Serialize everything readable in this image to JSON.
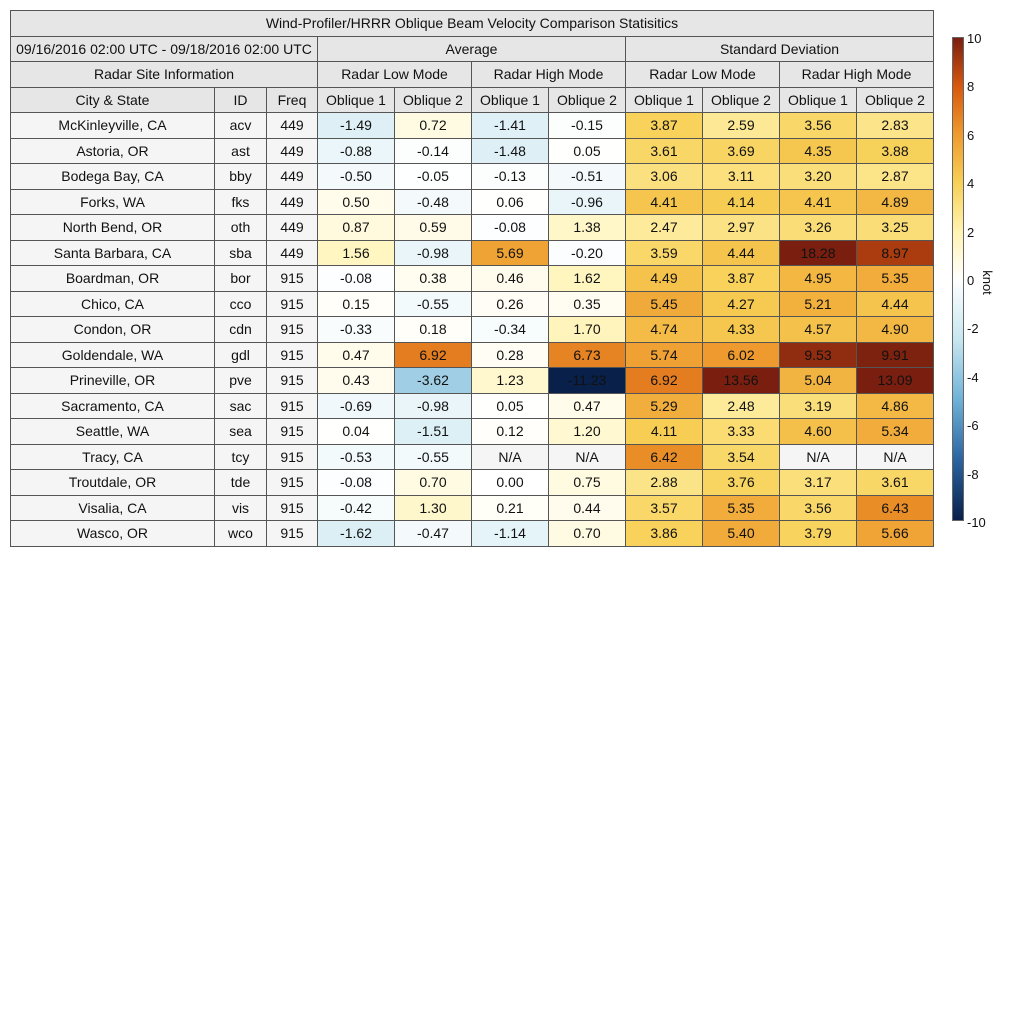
{
  "chart_data": {
    "type": "heatmap",
    "title": "Wind-Profiler/HRRR Oblique Beam Velocity Comparison Statisitics",
    "date_range": "09/16/2016 02:00 UTC - 09/18/2016 02:00 UTC",
    "site_header": "Radar Site Information",
    "columns": {
      "city": "City & State",
      "id": "ID",
      "freq": "Freq"
    },
    "groups": [
      {
        "label": "Average",
        "modes": [
          {
            "label": "Radar Low Mode",
            "beams": [
              "Oblique 1",
              "Oblique 2"
            ]
          },
          {
            "label": "Radar High Mode",
            "beams": [
              "Oblique 1",
              "Oblique 2"
            ]
          }
        ]
      },
      {
        "label": "Standard Deviation",
        "modes": [
          {
            "label": "Radar Low Mode",
            "beams": [
              "Oblique 1",
              "Oblique 2"
            ]
          },
          {
            "label": "Radar High Mode",
            "beams": [
              "Oblique 1",
              "Oblique 2"
            ]
          }
        ]
      }
    ],
    "rows": [
      {
        "city": "McKinleyville, CA",
        "id": "acv",
        "freq": "449",
        "values": [
          "-1.49",
          "0.72",
          "-1.41",
          "-0.15",
          "3.87",
          "2.59",
          "3.56",
          "2.83"
        ]
      },
      {
        "city": "Astoria, OR",
        "id": "ast",
        "freq": "449",
        "values": [
          "-0.88",
          "-0.14",
          "-1.48",
          "0.05",
          "3.61",
          "3.69",
          "4.35",
          "3.88"
        ]
      },
      {
        "city": "Bodega Bay, CA",
        "id": "bby",
        "freq": "449",
        "values": [
          "-0.50",
          "-0.05",
          "-0.13",
          "-0.51",
          "3.06",
          "3.11",
          "3.20",
          "2.87"
        ]
      },
      {
        "city": "Forks, WA",
        "id": "fks",
        "freq": "449",
        "values": [
          "0.50",
          "-0.48",
          "0.06",
          "-0.96",
          "4.41",
          "4.14",
          "4.41",
          "4.89"
        ]
      },
      {
        "city": "North Bend, OR",
        "id": "oth",
        "freq": "449",
        "values": [
          "0.87",
          "0.59",
          "-0.08",
          "1.38",
          "2.47",
          "2.97",
          "3.26",
          "3.25"
        ]
      },
      {
        "city": "Santa Barbara, CA",
        "id": "sba",
        "freq": "449",
        "values": [
          "1.56",
          "-0.98",
          "5.69",
          "-0.20",
          "3.59",
          "4.44",
          "18.28",
          "8.97"
        ]
      },
      {
        "city": "Boardman, OR",
        "id": "bor",
        "freq": "915",
        "values": [
          "-0.08",
          "0.38",
          "0.46",
          "1.62",
          "4.49",
          "3.87",
          "4.95",
          "5.35"
        ]
      },
      {
        "city": "Chico, CA",
        "id": "cco",
        "freq": "915",
        "values": [
          "0.15",
          "-0.55",
          "0.26",
          "0.35",
          "5.45",
          "4.27",
          "5.21",
          "4.44"
        ]
      },
      {
        "city": "Condon, OR",
        "id": "cdn",
        "freq": "915",
        "values": [
          "-0.33",
          "0.18",
          "-0.34",
          "1.70",
          "4.74",
          "4.33",
          "4.57",
          "4.90"
        ]
      },
      {
        "city": "Goldendale, WA",
        "id": "gdl",
        "freq": "915",
        "values": [
          "0.47",
          "6.92",
          "0.28",
          "6.73",
          "5.74",
          "6.02",
          "9.53",
          "9.91"
        ]
      },
      {
        "city": "Prineville, OR",
        "id": "pve",
        "freq": "915",
        "values": [
          "0.43",
          "-3.62",
          "1.23",
          "-11.23",
          "6.92",
          "13.56",
          "5.04",
          "13.09"
        ]
      },
      {
        "city": "Sacramento, CA",
        "id": "sac",
        "freq": "915",
        "values": [
          "-0.69",
          "-0.98",
          "0.05",
          "0.47",
          "5.29",
          "2.48",
          "3.19",
          "4.86"
        ]
      },
      {
        "city": "Seattle, WA",
        "id": "sea",
        "freq": "915",
        "values": [
          "0.04",
          "-1.51",
          "0.12",
          "1.20",
          "4.11",
          "3.33",
          "4.60",
          "5.34"
        ]
      },
      {
        "city": "Tracy, CA",
        "id": "tcy",
        "freq": "915",
        "values": [
          "-0.53",
          "-0.55",
          "N/A",
          "N/A",
          "6.42",
          "3.54",
          "N/A",
          "N/A"
        ]
      },
      {
        "city": "Troutdale, OR",
        "id": "tde",
        "freq": "915",
        "values": [
          "-0.08",
          "0.70",
          "0.00",
          "0.75",
          "2.88",
          "3.76",
          "3.17",
          "3.61"
        ]
      },
      {
        "city": "Visalia, CA",
        "id": "vis",
        "freq": "915",
        "values": [
          "-0.42",
          "1.30",
          "0.21",
          "0.44",
          "3.57",
          "5.35",
          "3.56",
          "6.43"
        ]
      },
      {
        "city": "Wasco, OR",
        "id": "wco",
        "freq": "915",
        "values": [
          "-1.62",
          "-0.47",
          "-1.14",
          "0.70",
          "3.86",
          "5.40",
          "3.79",
          "5.66"
        ]
      }
    ],
    "colorbar": {
      "range": [
        -10,
        10
      ],
      "ticks": [
        "10",
        "8",
        "6",
        "4",
        "2",
        "0",
        "-2",
        "-4",
        "-6",
        "-8",
        "-10"
      ],
      "unit": "knot",
      "colors_low_to_high": [
        "#08204a",
        "#2b64a0",
        "#6fb2d8",
        "#c7e6f0",
        "#ffffff",
        "#fff3b0",
        "#f7d055",
        "#ee9b2e",
        "#d8580f",
        "#7a1f10"
      ]
    }
  }
}
